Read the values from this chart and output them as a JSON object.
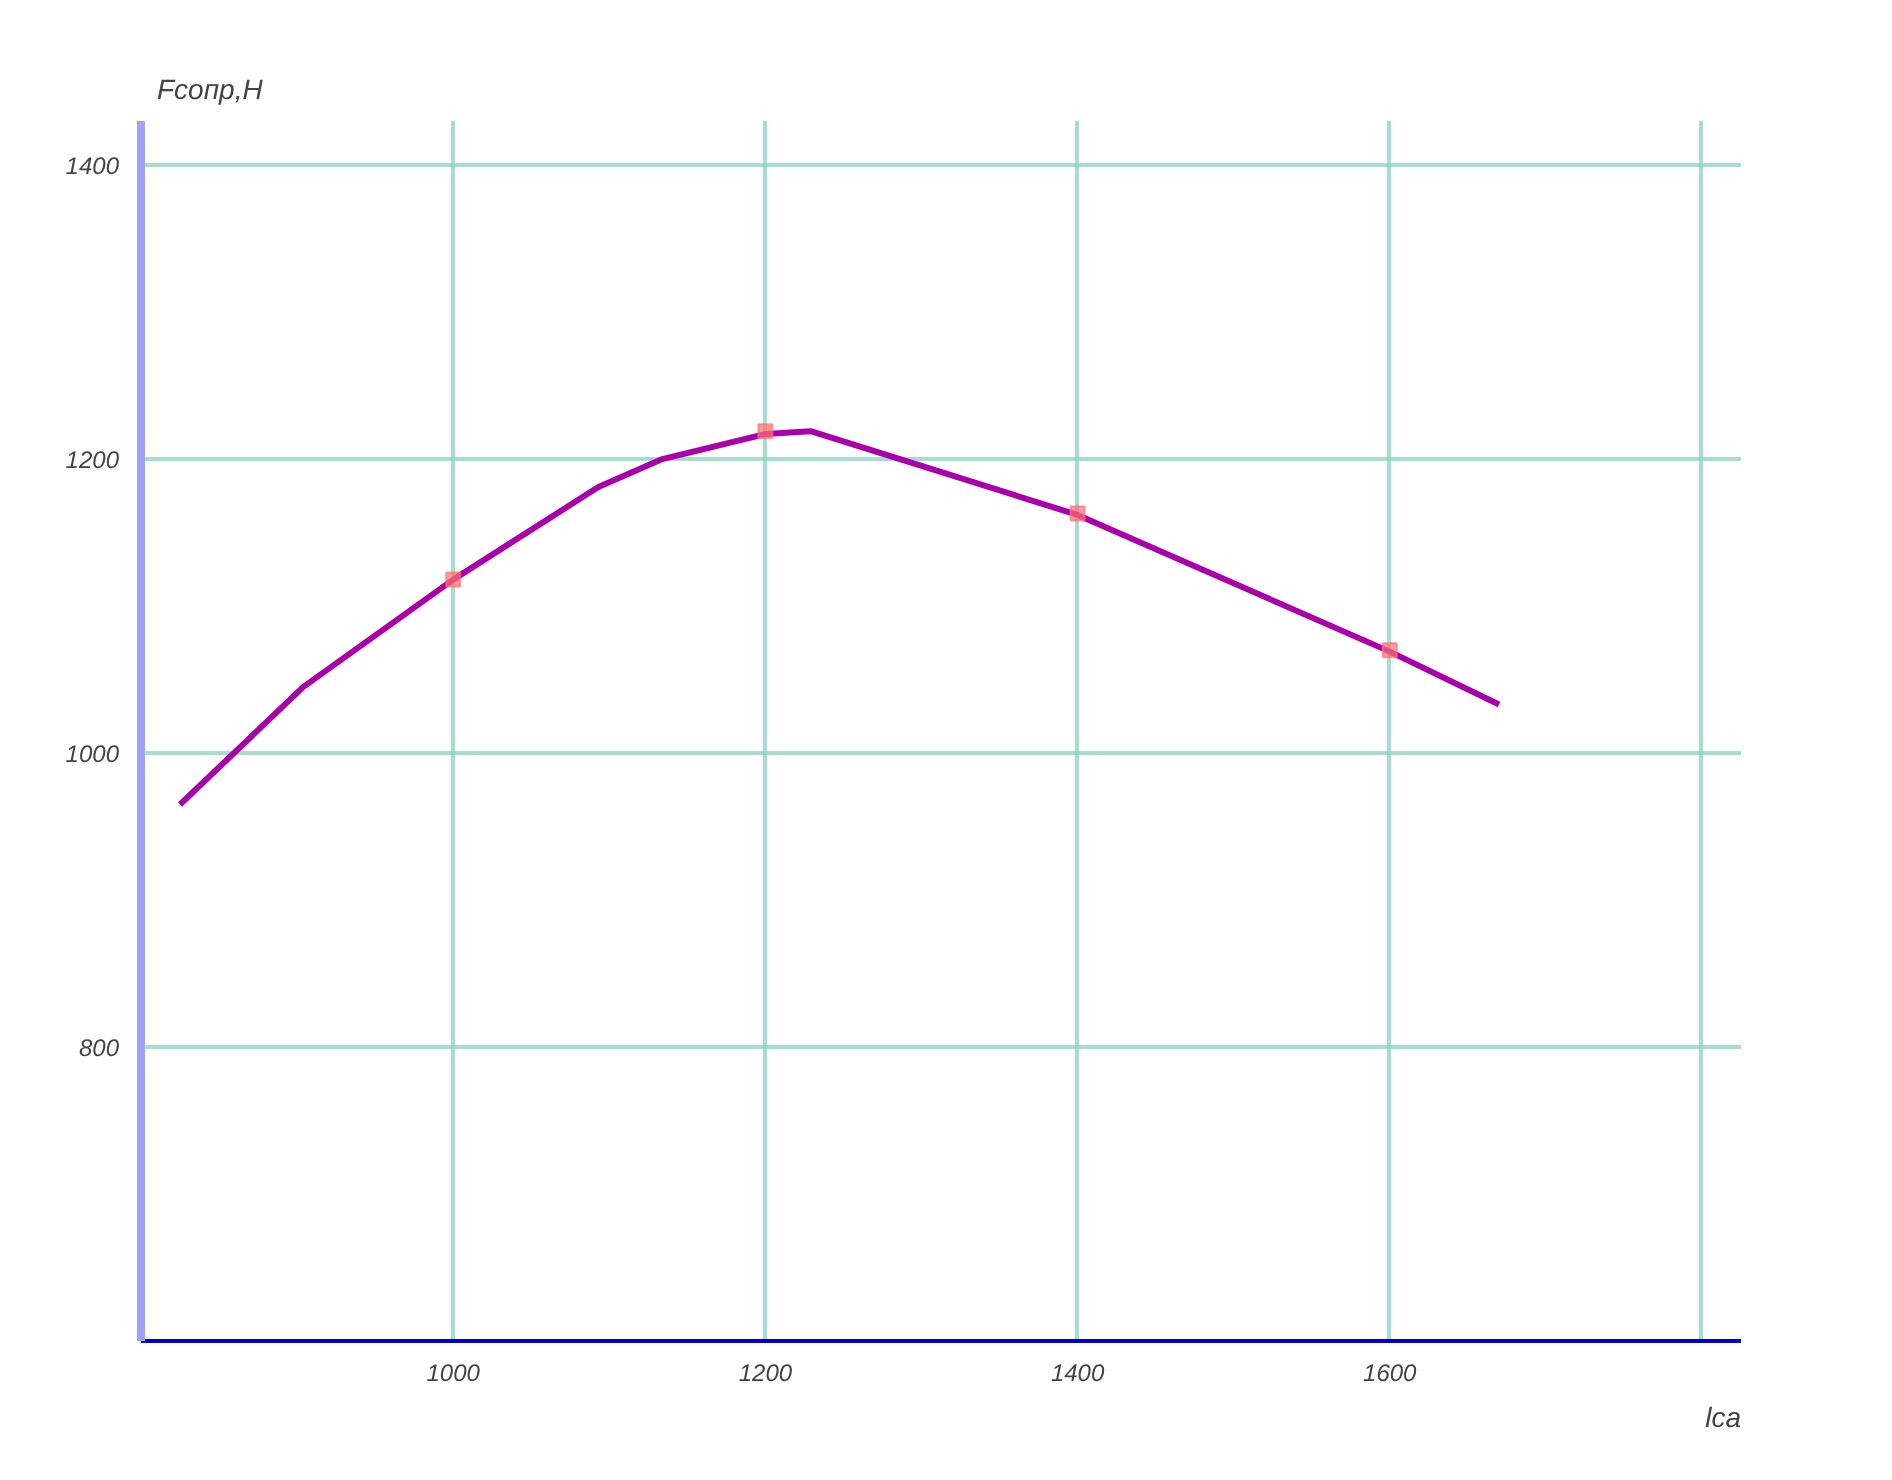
{
  "chart_data": {
    "type": "line",
    "xlabel": "lca",
    "ylabel": "Fсопр,Н",
    "xlim": [
      800,
      1825
    ],
    "ylim": [
      600,
      1430
    ],
    "xticks": [
      1000,
      1200,
      1400,
      1600,
      {
        "value": 1800,
        "label": null
      }
    ],
    "yticks": [
      800,
      1000,
      1200,
      1400
    ],
    "grid": true,
    "series": [
      {
        "color": "#aa00aa",
        "marker": "none",
        "x": [
          825,
          904,
          1000,
          1093,
          1134,
          1200,
          1229,
          1400,
          1600,
          1670
        ],
        "values": [
          965,
          1045,
          1118,
          1181,
          1200,
          1217,
          1219,
          1162,
          1069,
          1033
        ]
      },
      {
        "type": "scatter",
        "color": "#ff7070",
        "marker": "square",
        "x": [
          1000,
          1200,
          1400,
          1600
        ],
        "values": [
          1118,
          1219,
          1163,
          1070
        ]
      }
    ]
  }
}
